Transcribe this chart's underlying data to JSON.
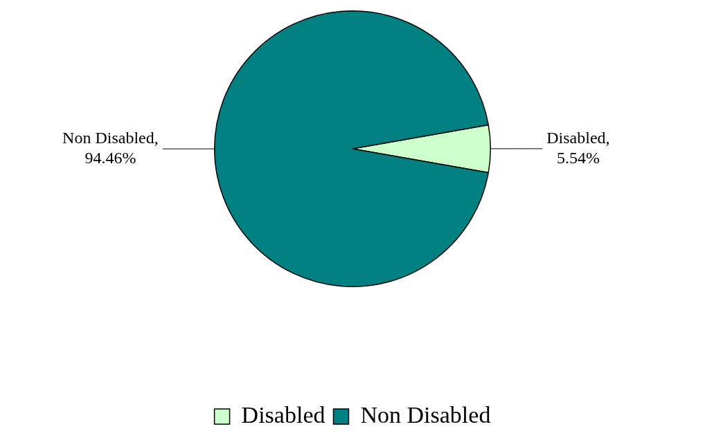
{
  "chart_data": {
    "type": "pie",
    "categories": [
      "Disabled",
      "Non Disabled"
    ],
    "values": [
      5.54,
      94.46
    ],
    "colors": [
      "#ccffcc",
      "#008080"
    ],
    "value_labels": [
      "Disabled, 5.54%",
      "Non Disabled, 94.46%"
    ],
    "legend": "bottom"
  }
}
